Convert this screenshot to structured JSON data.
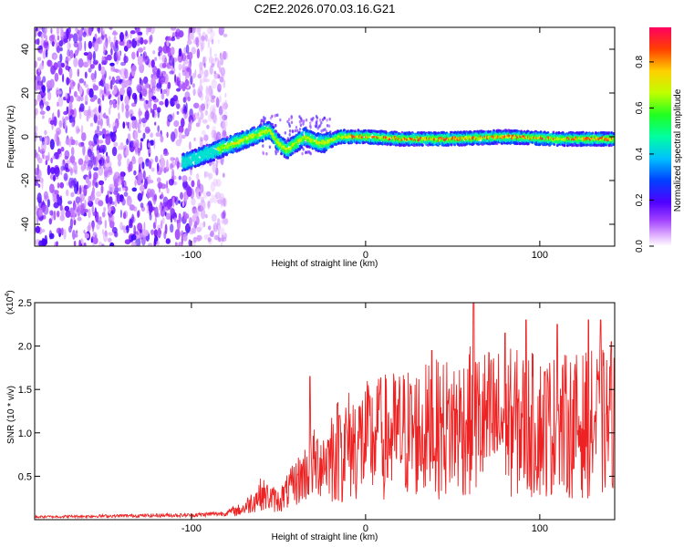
{
  "title": "C2E2.2026.070.03.16.G21",
  "colors": {
    "snr_line": "#ee2222",
    "axis": "#000000",
    "spec_low": "#e0c8ff",
    "spec_mid": "#7a18f0",
    "spec_high": "#ff1010"
  },
  "chart_data": [
    {
      "type": "heatmap",
      "name": "spectrogram",
      "xlabel": "Height of straight line (km)",
      "ylabel": "Frequency (Hz)",
      "xlim": [
        -190,
        143
      ],
      "ylim": [
        -50,
        50
      ],
      "xticks": [
        -100,
        0,
        100
      ],
      "yticks": [
        -40,
        -20,
        0,
        20,
        40
      ],
      "xtick_labels": [
        "-100",
        "0",
        "100"
      ],
      "ytick_labels": [
        "-40",
        "-20",
        "0",
        "20",
        "40"
      ],
      "colorbar": {
        "label": "Normalized spectral amplitude",
        "range": [
          0,
          0.95
        ],
        "ticks": [
          0.0,
          0.2,
          0.4,
          0.6,
          0.8
        ],
        "tick_labels": [
          "0.0",
          "0.2",
          "0.4",
          "0.6",
          "0.8"
        ]
      },
      "noise_region_x": [
        -190,
        -80
      ],
      "signal_track": {
        "x": [
          -105,
          -95,
          -85,
          -75,
          -65,
          -55,
          -50,
          -45,
          -40,
          -35,
          -30,
          -25,
          -20,
          -15,
          -10,
          0,
          20,
          50,
          80,
          110,
          143
        ],
        "freq": [
          -12,
          -9,
          -6,
          -3,
          0,
          3,
          -3,
          -6,
          -3,
          0,
          -2,
          -3,
          -2,
          0,
          0,
          0,
          -1,
          -1,
          0,
          -1,
          -1
        ]
      }
    },
    {
      "type": "line",
      "name": "snr",
      "xlabel": "Height of straight line (km)",
      "ylabel": "SNR (10 * v/v)",
      "scale_label": "(x10",
      "scale_exp": "4",
      "scale_close": ")",
      "xlim": [
        -190,
        143
      ],
      "ylim": [
        0,
        2.5
      ],
      "xticks": [
        -100,
        0,
        100
      ],
      "yticks": [
        0.5,
        1.0,
        1.5,
        2.0,
        2.5
      ],
      "xtick_labels": [
        "-100",
        "0",
        "100"
      ],
      "ytick_labels": [
        "0.5",
        "1.0",
        "1.5",
        "2.0",
        "2.5"
      ],
      "envelope": {
        "x": [
          -190,
          -150,
          -100,
          -80,
          -70,
          -60,
          -50,
          -40,
          -30,
          -20,
          -10,
          0,
          10,
          20,
          40,
          60,
          80,
          100,
          120,
          143
        ],
        "y": [
          0.03,
          0.04,
          0.05,
          0.07,
          0.15,
          0.35,
          0.25,
          0.5,
          0.75,
          0.85,
          0.95,
          1.0,
          1.05,
          1.1,
          1.15,
          1.25,
          1.25,
          1.2,
          1.2,
          1.25
        ]
      },
      "peaks": [
        {
          "x": -32,
          "y": 1.65
        },
        {
          "x": -15,
          "y": 1.2
        },
        {
          "x": 8,
          "y": 1.45
        },
        {
          "x": 38,
          "y": 1.95
        },
        {
          "x": 62,
          "y": 2.55
        },
        {
          "x": 80,
          "y": 2.15
        },
        {
          "x": 92,
          "y": 2.3
        },
        {
          "x": 110,
          "y": 2.25
        },
        {
          "x": 128,
          "y": 2.3
        },
        {
          "x": 135,
          "y": 2.3
        },
        {
          "x": 141,
          "y": 2.05
        }
      ]
    }
  ]
}
